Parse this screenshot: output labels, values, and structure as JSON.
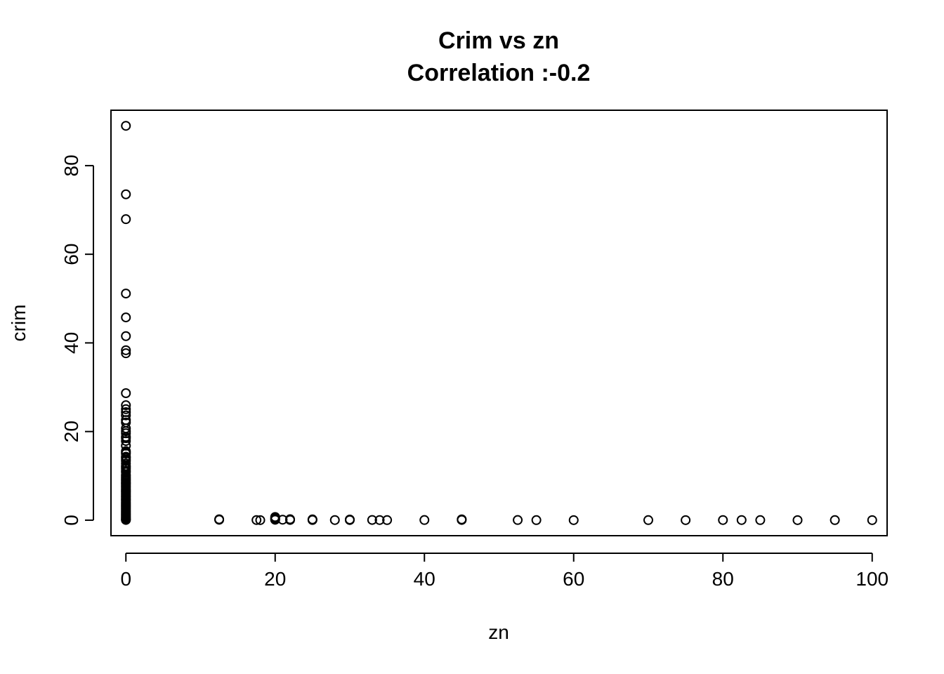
{
  "chart_data": {
    "type": "scatter",
    "title": "Crim vs zn",
    "subtitle": "Correlation :-0.2",
    "xlabel": "zn",
    "ylabel": "crim",
    "xlim": [
      -2,
      102
    ],
    "ylim": [
      -3.5,
      92.5
    ],
    "xticks": [
      0,
      20,
      40,
      60,
      80,
      100
    ],
    "yticks": [
      0,
      20,
      40,
      60,
      80
    ],
    "grid": false,
    "legend": "none",
    "series": [
      {
        "points": [
          [
            0,
            88.98
          ],
          [
            0,
            73.53
          ],
          [
            0,
            67.92
          ],
          [
            0,
            51.14
          ],
          [
            0,
            45.75
          ],
          [
            0,
            41.53
          ],
          [
            0,
            38.35
          ],
          [
            0,
            37.66
          ],
          [
            0,
            28.66
          ],
          [
            0,
            25.94
          ],
          [
            0,
            25.05
          ],
          [
            0,
            24.39
          ],
          [
            0,
            23.65
          ],
          [
            0,
            22.6
          ],
          [
            0,
            22.05
          ],
          [
            0,
            20.72
          ],
          [
            0,
            20.08
          ],
          [
            0,
            19.61
          ],
          [
            0,
            18.81
          ],
          [
            0,
            18.5
          ],
          [
            0,
            17.87
          ],
          [
            0,
            16.81
          ],
          [
            0,
            15.58
          ],
          [
            0,
            15.29
          ],
          [
            0,
            15.02
          ],
          [
            0,
            14.33
          ],
          [
            0,
            14.05
          ],
          [
            0,
            13.68
          ],
          [
            0,
            13.36
          ],
          [
            0,
            12.8
          ],
          [
            0,
            12.25
          ],
          [
            0,
            11.95
          ],
          [
            0,
            11.58
          ],
          [
            0,
            11.16
          ],
          [
            0,
            10.84
          ],
          [
            0,
            10.23
          ],
          [
            0,
            9.92
          ],
          [
            0,
            9.6
          ],
          [
            0,
            9.33
          ],
          [
            0,
            9.06
          ],
          [
            0,
            8.79
          ],
          [
            0,
            8.49
          ],
          [
            0,
            8.27
          ],
          [
            0,
            7.99
          ],
          [
            0,
            7.67
          ],
          [
            0,
            7.4
          ],
          [
            0,
            7.05
          ],
          [
            0,
            6.8
          ],
          [
            0,
            6.53
          ],
          [
            0,
            6.29
          ],
          [
            0,
            5.98
          ],
          [
            0,
            5.7
          ],
          [
            0,
            5.44
          ],
          [
            0,
            5.19
          ],
          [
            0,
            4.89
          ],
          [
            0,
            4.66
          ],
          [
            0,
            4.42
          ],
          [
            0,
            4.1
          ],
          [
            0,
            3.85
          ],
          [
            0,
            3.57
          ],
          [
            0,
            3.32
          ],
          [
            0,
            3.08
          ],
          [
            0,
            2.82
          ],
          [
            0,
            2.55
          ],
          [
            0,
            2.3
          ],
          [
            0,
            2.01
          ],
          [
            0,
            1.75
          ],
          [
            0,
            1.49
          ],
          [
            0,
            1.23
          ],
          [
            0,
            0.98
          ],
          [
            0,
            0.73
          ],
          [
            0,
            0.5
          ],
          [
            0,
            0.3
          ],
          [
            0,
            0.14
          ],
          [
            0,
            0.05
          ],
          [
            12.5,
            0.21
          ],
          [
            12.5,
            0.09
          ],
          [
            17.5,
            0.03
          ],
          [
            18,
            0.01
          ],
          [
            20,
            0.72
          ],
          [
            20,
            0.45
          ],
          [
            20,
            0.25
          ],
          [
            20,
            0.09
          ],
          [
            21,
            0.11
          ],
          [
            22,
            0.22
          ],
          [
            22,
            0.05
          ],
          [
            25,
            0.18
          ],
          [
            25,
            0.04
          ],
          [
            28,
            0.03
          ],
          [
            30,
            0.15
          ],
          [
            30,
            0.03
          ],
          [
            33,
            0.05
          ],
          [
            34,
            0.03
          ],
          [
            35,
            0.02
          ],
          [
            40,
            0.04
          ],
          [
            45,
            0.19
          ],
          [
            45,
            0.05
          ],
          [
            52.5,
            0.04
          ],
          [
            55,
            0.02
          ],
          [
            60,
            0.01
          ],
          [
            70,
            0.02
          ],
          [
            75,
            0.01
          ],
          [
            80,
            0.03
          ],
          [
            82.5,
            0.03
          ],
          [
            85,
            0.02
          ],
          [
            90,
            0.01
          ],
          [
            95,
            0.02
          ],
          [
            100,
            0.01
          ]
        ]
      }
    ]
  }
}
